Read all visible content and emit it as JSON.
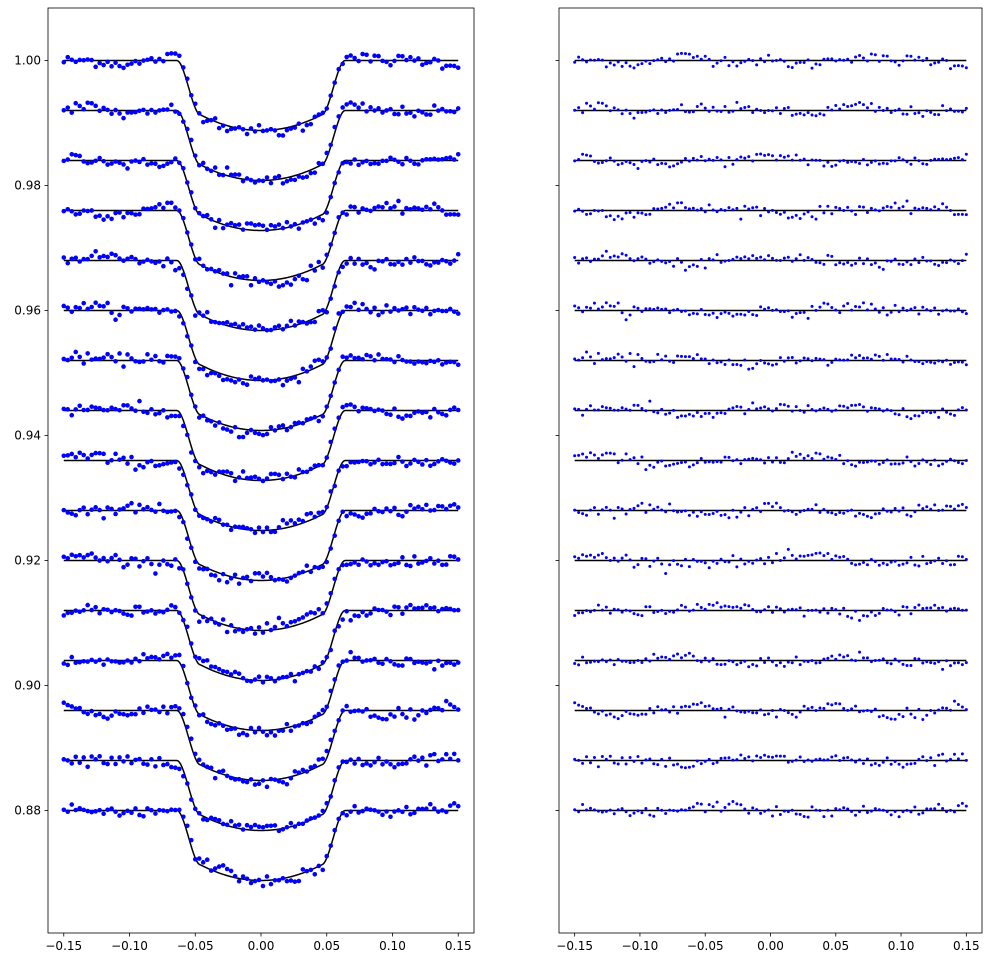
{
  "chart_data": [
    {
      "type": "scatter",
      "panel": "light-curves",
      "xlim": [
        -0.162,
        0.162
      ],
      "ylim": [
        0.8604,
        1.0084
      ],
      "x_ticks": [
        -0.15,
        -0.1,
        -0.05,
        0.0,
        0.05,
        0.1,
        0.15
      ],
      "x_tick_labels": [
        "−0.15",
        "−0.10",
        "−0.05",
        "0.00",
        "0.05",
        "0.10",
        "0.15"
      ],
      "y_ticks": [
        0.88,
        0.9,
        0.92,
        0.94,
        0.96,
        0.98,
        1.0
      ],
      "y_tick_labels": [
        "0.88",
        "0.90",
        "0.92",
        "0.94",
        "0.96",
        "0.98",
        "1.00"
      ],
      "grid": false,
      "model": {
        "series_count": 16,
        "baseline_first": 1.0,
        "baseline_step": -0.008,
        "transit_depth": 0.0112,
        "limb_curvature": 0.0025,
        "ingress_start": 0.064,
        "ingress_end": 0.046,
        "x_range": [
          -0.15,
          0.15
        ],
        "points_per_series": 100,
        "noise_std": 0.0008,
        "residual_pattern_amp": 0.0007
      },
      "point_color": "#0000ff",
      "line_color": "#000000"
    },
    {
      "type": "scatter",
      "panel": "residuals",
      "xlim": [
        -0.162,
        0.162
      ],
      "ylim": [
        0.8604,
        1.0084
      ],
      "x_ticks": [
        -0.15,
        -0.1,
        -0.05,
        0.0,
        0.05,
        0.1,
        0.15
      ],
      "x_tick_labels": [
        "−0.15",
        "−0.10",
        "−0.05",
        "0.00",
        "0.05",
        "0.10",
        "0.15"
      ],
      "y_ticks": [
        0.88,
        0.9,
        0.92,
        0.94,
        0.96,
        0.98,
        1.0
      ],
      "y_tick_labels": [],
      "grid": false,
      "model": {
        "series_count": 16,
        "baseline_first": 1.0,
        "baseline_step": -0.008,
        "line": "flat"
      },
      "point_color": "#0000ff",
      "line_color": "#000000"
    }
  ]
}
